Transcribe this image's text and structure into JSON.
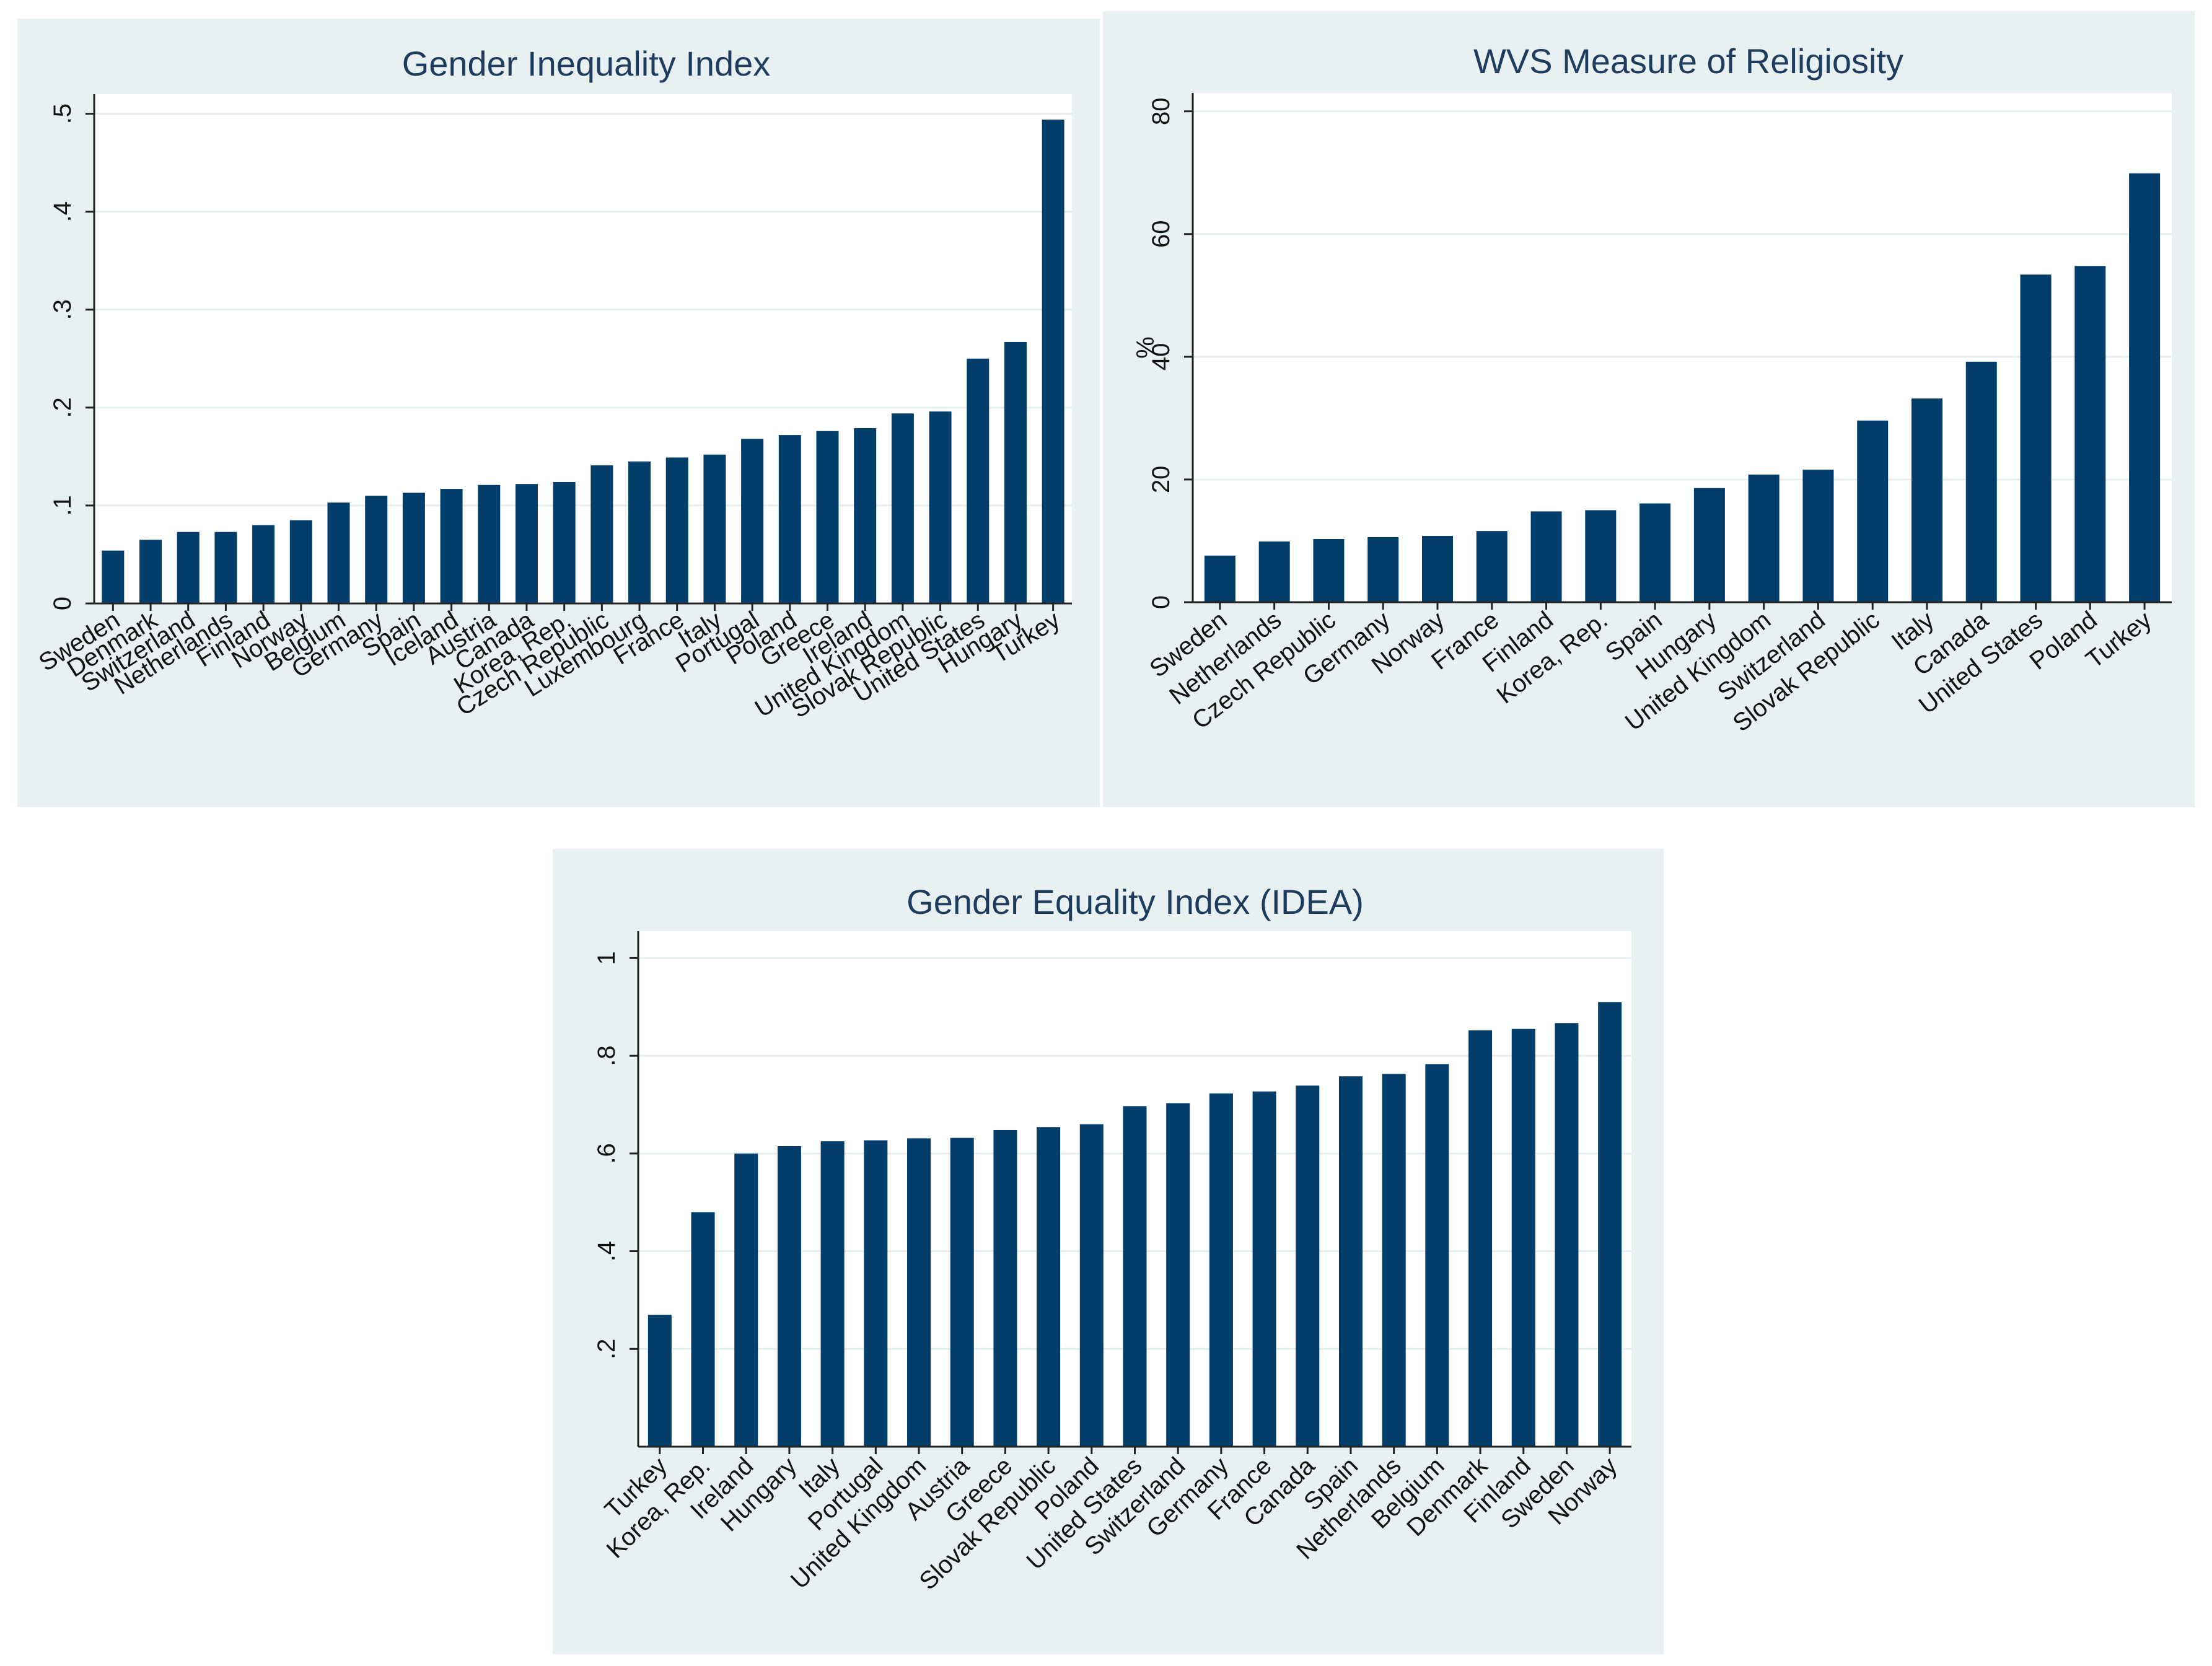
{
  "chart_data": [
    {
      "type": "bar",
      "title": "Gender Inequality Index",
      "xlabel": "",
      "ylabel": "",
      "ylim": [
        0,
        0.52
      ],
      "yticks": [
        0,
        0.1,
        0.2,
        0.3,
        0.4,
        0.5
      ],
      "ytick_labels": [
        "0",
        ".1",
        ".2",
        ".3",
        ".4",
        ".5"
      ],
      "categories": [
        "Sweden",
        "Denmark",
        "Switzerland",
        "Netherlands",
        "Finland",
        "Norway",
        "Belgium",
        "Germany",
        "Spain",
        "Iceland",
        "Austria",
        "Canada",
        "Korea, Rep.",
        "Czech Republic",
        "Luxembourg",
        "France",
        "Italy",
        "Portugal",
        "Poland",
        "Greece",
        "Ireland",
        "United Kingdom",
        "Slovak Republic",
        "United States",
        "Hungary",
        "Turkey"
      ],
      "values": [
        0.054,
        0.065,
        0.073,
        0.073,
        0.08,
        0.085,
        0.103,
        0.11,
        0.113,
        0.117,
        0.121,
        0.122,
        0.124,
        0.141,
        0.145,
        0.149,
        0.152,
        0.168,
        0.172,
        0.176,
        0.179,
        0.194,
        0.196,
        0.25,
        0.267,
        0.494
      ],
      "grid": true,
      "legend": "none"
    },
    {
      "type": "bar",
      "title": "WVS Measure of Religiosity",
      "xlabel": "",
      "ylabel": "%",
      "ylim": [
        0,
        83
      ],
      "yticks": [
        0,
        20,
        40,
        60,
        80
      ],
      "ytick_labels": [
        "0",
        "20",
        "40",
        "60",
        "80"
      ],
      "categories": [
        "Sweden",
        "Netherlands",
        "Czech Republic",
        "Germany",
        "Norway",
        "France",
        "Finland",
        "Korea, Rep.",
        "Spain",
        "Hungary",
        "United Kingdom",
        "Switzerland",
        "Slovak Republic",
        "Italy",
        "Canada",
        "United States",
        "Poland",
        "Turkey"
      ],
      "values": [
        7.6,
        9.9,
        10.3,
        10.6,
        10.8,
        11.6,
        14.8,
        15.0,
        16.1,
        18.6,
        20.8,
        21.6,
        29.6,
        33.2,
        39.2,
        53.4,
        54.8,
        69.9
      ],
      "grid": true,
      "legend": "none"
    },
    {
      "type": "bar",
      "title": "Gender Equality Index (IDEA)",
      "xlabel": "",
      "ylabel": "",
      "ylim": [
        0,
        1.055
      ],
      "yticks": [
        0.2,
        0.4,
        0.6,
        0.8,
        1.0
      ],
      "ytick_labels": [
        ".2",
        ".4",
        ".6",
        ".8",
        "1"
      ],
      "categories": [
        "Turkey",
        "Korea, Rep.",
        "Ireland",
        "Hungary",
        "Italy",
        "Portugal",
        "United Kingdom",
        "Austria",
        "Greece",
        "Slovak Republic",
        "Poland",
        "United States",
        "Switzerland",
        "Germany",
        "France",
        "Canada",
        "Spain",
        "Netherlands",
        "Belgium",
        "Denmark",
        "Finland",
        "Sweden",
        "Norway"
      ],
      "values": [
        0.27,
        0.48,
        0.6,
        0.615,
        0.625,
        0.627,
        0.631,
        0.632,
        0.648,
        0.654,
        0.66,
        0.697,
        0.703,
        0.723,
        0.727,
        0.739,
        0.758,
        0.763,
        0.783,
        0.852,
        0.855,
        0.867,
        0.91
      ],
      "grid": true,
      "legend": "none"
    }
  ]
}
